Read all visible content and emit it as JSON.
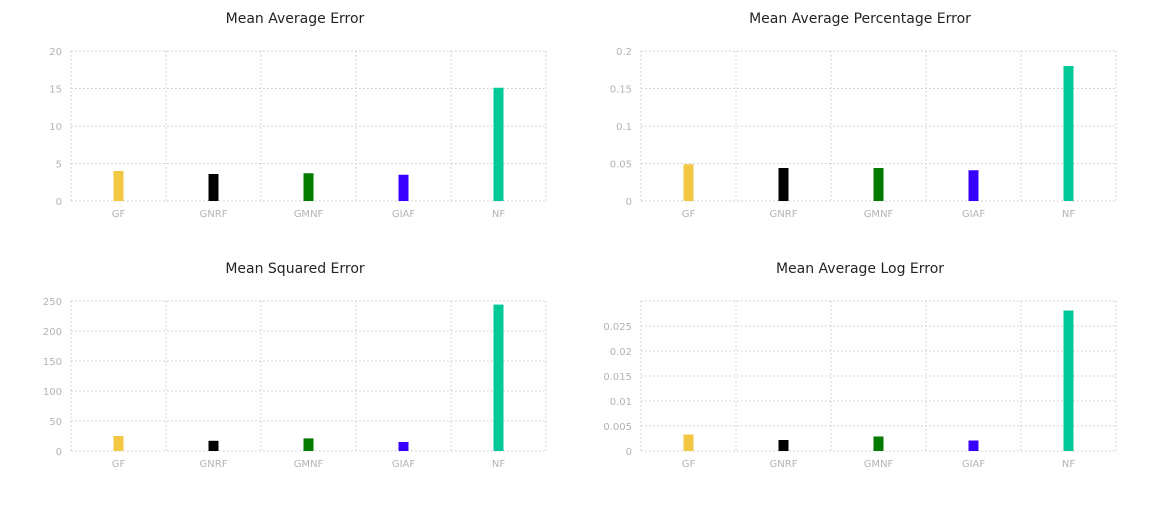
{
  "chart_data": [
    {
      "type": "bar",
      "title": "Mean Average Error",
      "categories": [
        "GF",
        "GNRF",
        "GMNF",
        "GIAF",
        "NF"
      ],
      "values": [
        4.0,
        3.6,
        3.7,
        3.5,
        15.1
      ],
      "colors": [
        "#F2C744",
        "#000000",
        "#037B00",
        "#3700FF",
        "#00C896"
      ],
      "ylim": [
        0,
        20
      ],
      "yticks": [
        0,
        5,
        10,
        15,
        20
      ],
      "ytick_labels": [
        "0",
        "5",
        "10",
        "15",
        "20"
      ],
      "xlabel": "",
      "ylabel": "",
      "grid": true
    },
    {
      "type": "bar",
      "title": "Mean Average Percentage Error",
      "categories": [
        "GF",
        "GNRF",
        "GMNF",
        "GIAF",
        "NF"
      ],
      "values": [
        0.049,
        0.044,
        0.044,
        0.041,
        0.18
      ],
      "colors": [
        "#F2C744",
        "#000000",
        "#037B00",
        "#3700FF",
        "#00C896"
      ],
      "ylim": [
        0,
        0.2
      ],
      "yticks": [
        0,
        0.05,
        0.1,
        0.15,
        0.2
      ],
      "ytick_labels": [
        "0",
        "0.05",
        "0.1",
        "0.15",
        "0.2"
      ],
      "xlabel": "",
      "ylabel": "",
      "grid": true
    },
    {
      "type": "bar",
      "title": "Mean Squared Error",
      "categories": [
        "GF",
        "GNRF",
        "GMNF",
        "GIAF",
        "NF"
      ],
      "values": [
        25,
        17,
        21,
        15,
        244
      ],
      "colors": [
        "#F2C744",
        "#000000",
        "#037B00",
        "#3700FF",
        "#00C896"
      ],
      "ylim": [
        0,
        250
      ],
      "yticks": [
        0,
        50,
        100,
        150,
        200,
        250
      ],
      "ytick_labels": [
        "0",
        "50",
        "100",
        "150",
        "200",
        "250"
      ],
      "xlabel": "",
      "ylabel": "",
      "grid": true
    },
    {
      "type": "bar",
      "title": "Mean Average Log Error",
      "categories": [
        "GF",
        "GNRF",
        "GMNF",
        "GIAF",
        "NF"
      ],
      "values": [
        0.0033,
        0.0022,
        0.0029,
        0.0021,
        0.0281
      ],
      "colors": [
        "#F2C744",
        "#000000",
        "#037B00",
        "#3700FF",
        "#00C896"
      ],
      "ylim": [
        0,
        0.03
      ],
      "yticks": [
        0,
        0.005,
        0.01,
        0.015,
        0.02,
        0.025
      ],
      "ytick_labels": [
        "0",
        "0.005",
        "0.01",
        "0.015",
        "0.02",
        "0.025"
      ],
      "xlabel": "",
      "ylabel": "",
      "grid": true
    }
  ]
}
